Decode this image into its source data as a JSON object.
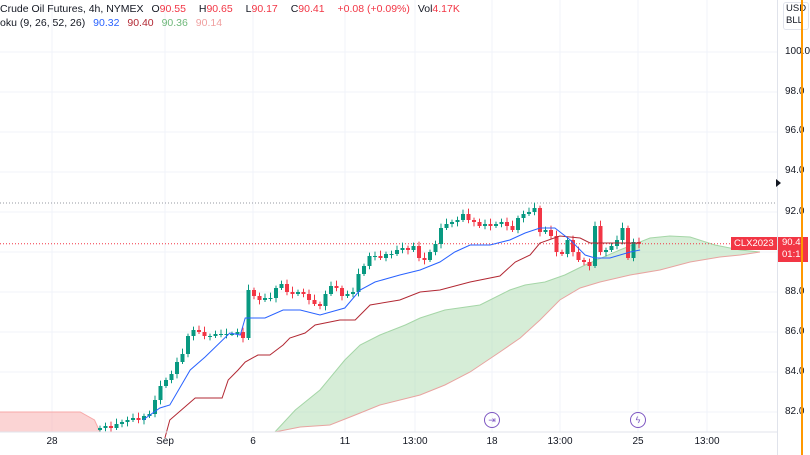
{
  "legend": {
    "symbol": "Crude Oil Futures, 4h, NYMEX",
    "open_label": "O",
    "open": "90.55",
    "high_label": "H",
    "high": "90.65",
    "low_label": "L",
    "low": "90.17",
    "close_label": "C",
    "close": "90.41",
    "change": "+0.08 (+0.09%)",
    "vol_label": "Vol",
    "vol": "4.17K",
    "indicator": "oku (9, 26, 52, 26)",
    "ind_values": [
      "90.32",
      "90.40",
      "90.36",
      "90.14"
    ]
  },
  "price_axis": {
    "currency": [
      "USD",
      "BLL"
    ],
    "ticks": [
      "100.0",
      "98.0",
      "96.0",
      "94.0",
      "92.0",
      "88.0",
      "86.0",
      "84.0",
      "82.0"
    ],
    "symbol_tag": "CLX2023",
    "last_price": "90.4",
    "countdown": "01:1"
  },
  "time_axis": {
    "ticks": [
      "28",
      "Sep",
      "6",
      "11",
      "13:00",
      "18",
      "13:00",
      "25",
      "13:00"
    ]
  },
  "events": [
    {
      "icon": "split-arrow-icon",
      "glyph": "⇥"
    },
    {
      "icon": "lightning-icon",
      "glyph": "ϟ"
    }
  ],
  "colors": {
    "up": "#089981",
    "down": "#f23645",
    "tenkan": "#2962ff",
    "kijun": "#b22833",
    "cloud_up": "#a5d6a7",
    "cloud_down": "#f7a9a9",
    "event": "#7e57c2"
  },
  "chart_data": {
    "type": "candlestick",
    "grid": true,
    "ylim": [
      81.0,
      101.6
    ],
    "closes": [
      81.2,
      81.3,
      81.2,
      81.4,
      81.5,
      81.6,
      81.7,
      81.6,
      81.8,
      81.9,
      82.6,
      83.3,
      83.6,
      83.9,
      84.5,
      84.9,
      85.8,
      86.1,
      86.0,
      85.8,
      85.8,
      85.9,
      85.9,
      85.9,
      85.9,
      86.0,
      85.7,
      88.1,
      87.8,
      87.6,
      87.7,
      87.7,
      88.2,
      88.4,
      88.0,
      87.9,
      88.0,
      87.9,
      87.6,
      87.4,
      87.3,
      87.9,
      88.3,
      88.2,
      87.8,
      87.9,
      88.0,
      88.9,
      89.3,
      89.8,
      89.8,
      89.7,
      89.9,
      89.9,
      90.1,
      90.2,
      90.1,
      90.3,
      89.7,
      89.6,
      90.0,
      90.4,
      91.2,
      91.4,
      91.5,
      91.6,
      91.9,
      91.6,
      91.5,
      91.3,
      91.4,
      91.3,
      91.4,
      91.5,
      91.3,
      91.1,
      91.7,
      91.9,
      92.0,
      92.2,
      91.0,
      91.1,
      90.8,
      90.0,
      89.9,
      90.6,
      90.0,
      89.6,
      89.5,
      89.3,
      91.3,
      90.0,
      90.1,
      90.3,
      90.6,
      91.2,
      89.7,
      90.5,
      90.41
    ],
    "tenkan": [
      [
        7.8,
        81.6
      ],
      [
        10.9,
        82.2
      ],
      [
        12.7,
        82.35
      ],
      [
        16.4,
        84.1
      ],
      [
        19.1,
        84.75
      ],
      [
        23.6,
        85.95
      ],
      [
        25.5,
        85.85
      ],
      [
        26.4,
        86.7
      ],
      [
        30,
        86.7
      ],
      [
        33.3,
        87.1
      ],
      [
        36.4,
        87.1
      ],
      [
        40,
        86.85
      ],
      [
        44.5,
        87.2
      ],
      [
        47.3,
        88.1
      ],
      [
        50,
        88.5
      ],
      [
        54.5,
        88.85
      ],
      [
        58.2,
        89.1
      ],
      [
        61.8,
        89.5
      ],
      [
        64.5,
        90.0
      ],
      [
        67.3,
        90.35
      ],
      [
        70.9,
        90.35
      ],
      [
        74.5,
        90.6
      ],
      [
        77.3,
        90.95
      ],
      [
        80,
        91.2
      ],
      [
        82.7,
        91.2
      ],
      [
        85.5,
        90.6
      ],
      [
        88.2,
        89.85
      ],
      [
        90,
        89.7
      ],
      [
        92.7,
        89.7
      ],
      [
        96.4,
        90.0
      ],
      [
        98.2,
        90.1
      ]
    ],
    "kijun": [
      [
        11.8,
        80.7
      ],
      [
        12.7,
        81.6
      ],
      [
        17.3,
        82.7
      ],
      [
        22.2,
        82.7
      ],
      [
        23.3,
        83.6
      ],
      [
        25.1,
        84.1
      ],
      [
        26.4,
        84.5
      ],
      [
        28.7,
        84.85
      ],
      [
        30.9,
        84.85
      ],
      [
        33.3,
        85.35
      ],
      [
        34.5,
        85.7
      ],
      [
        37.3,
        85.95
      ],
      [
        39.1,
        86.35
      ],
      [
        43.6,
        86.6
      ],
      [
        46.4,
        86.6
      ],
      [
        49.1,
        87.35
      ],
      [
        54.5,
        87.6
      ],
      [
        58.2,
        88.0
      ],
      [
        61.8,
        88.1
      ],
      [
        67.3,
        88.5
      ],
      [
        72.7,
        88.8
      ],
      [
        75.5,
        89.5
      ],
      [
        78.2,
        89.85
      ],
      [
        80,
        90.45
      ],
      [
        83.6,
        90.8
      ],
      [
        87.3,
        90.7
      ],
      [
        89.1,
        90.45
      ],
      [
        98.2,
        90.45
      ]
    ],
    "senkou_a": [
      [
        31.8,
        81.0
      ],
      [
        35.5,
        82.1
      ],
      [
        40,
        83.1
      ],
      [
        44.5,
        84.6
      ],
      [
        47.3,
        85.35
      ],
      [
        50.9,
        85.85
      ],
      [
        55.5,
        86.35
      ],
      [
        58.2,
        86.7
      ],
      [
        62.7,
        87.1
      ],
      [
        69.1,
        87.35
      ],
      [
        74.5,
        88.1
      ],
      [
        77.3,
        88.35
      ],
      [
        80.9,
        88.5
      ],
      [
        84.5,
        88.85
      ],
      [
        88.2,
        89.35
      ],
      [
        94.5,
        90.1
      ],
      [
        100,
        90.7
      ],
      [
        103.6,
        90.8
      ],
      [
        107.3,
        90.75
      ],
      [
        111.8,
        90.35
      ],
      [
        116.4,
        90.1
      ],
      [
        120,
        90.0
      ]
    ],
    "senkou_b": [
      [
        31.8,
        81.0
      ],
      [
        36.4,
        81.25
      ],
      [
        41.8,
        81.35
      ],
      [
        46.4,
        81.85
      ],
      [
        50.9,
        82.35
      ],
      [
        58.2,
        82.85
      ],
      [
        62.7,
        83.35
      ],
      [
        67.3,
        84.0
      ],
      [
        72.7,
        85.0
      ],
      [
        76.4,
        85.7
      ],
      [
        80,
        86.6
      ],
      [
        83.6,
        87.6
      ],
      [
        87.3,
        88.2
      ],
      [
        90.9,
        88.5
      ],
      [
        96.4,
        88.85
      ],
      [
        101.8,
        89.1
      ],
      [
        107.3,
        89.5
      ],
      [
        112.7,
        89.75
      ],
      [
        116.4,
        89.85
      ],
      [
        120,
        90.0
      ]
    ],
    "red_cloud_b": [
      [
        -18.2,
        82.0
      ],
      [
        -3.6,
        82.0
      ],
      [
        -1,
        81.6
      ],
      [
        0,
        81.0
      ]
    ],
    "high_line": 92.45,
    "last_line": 90.41
  }
}
